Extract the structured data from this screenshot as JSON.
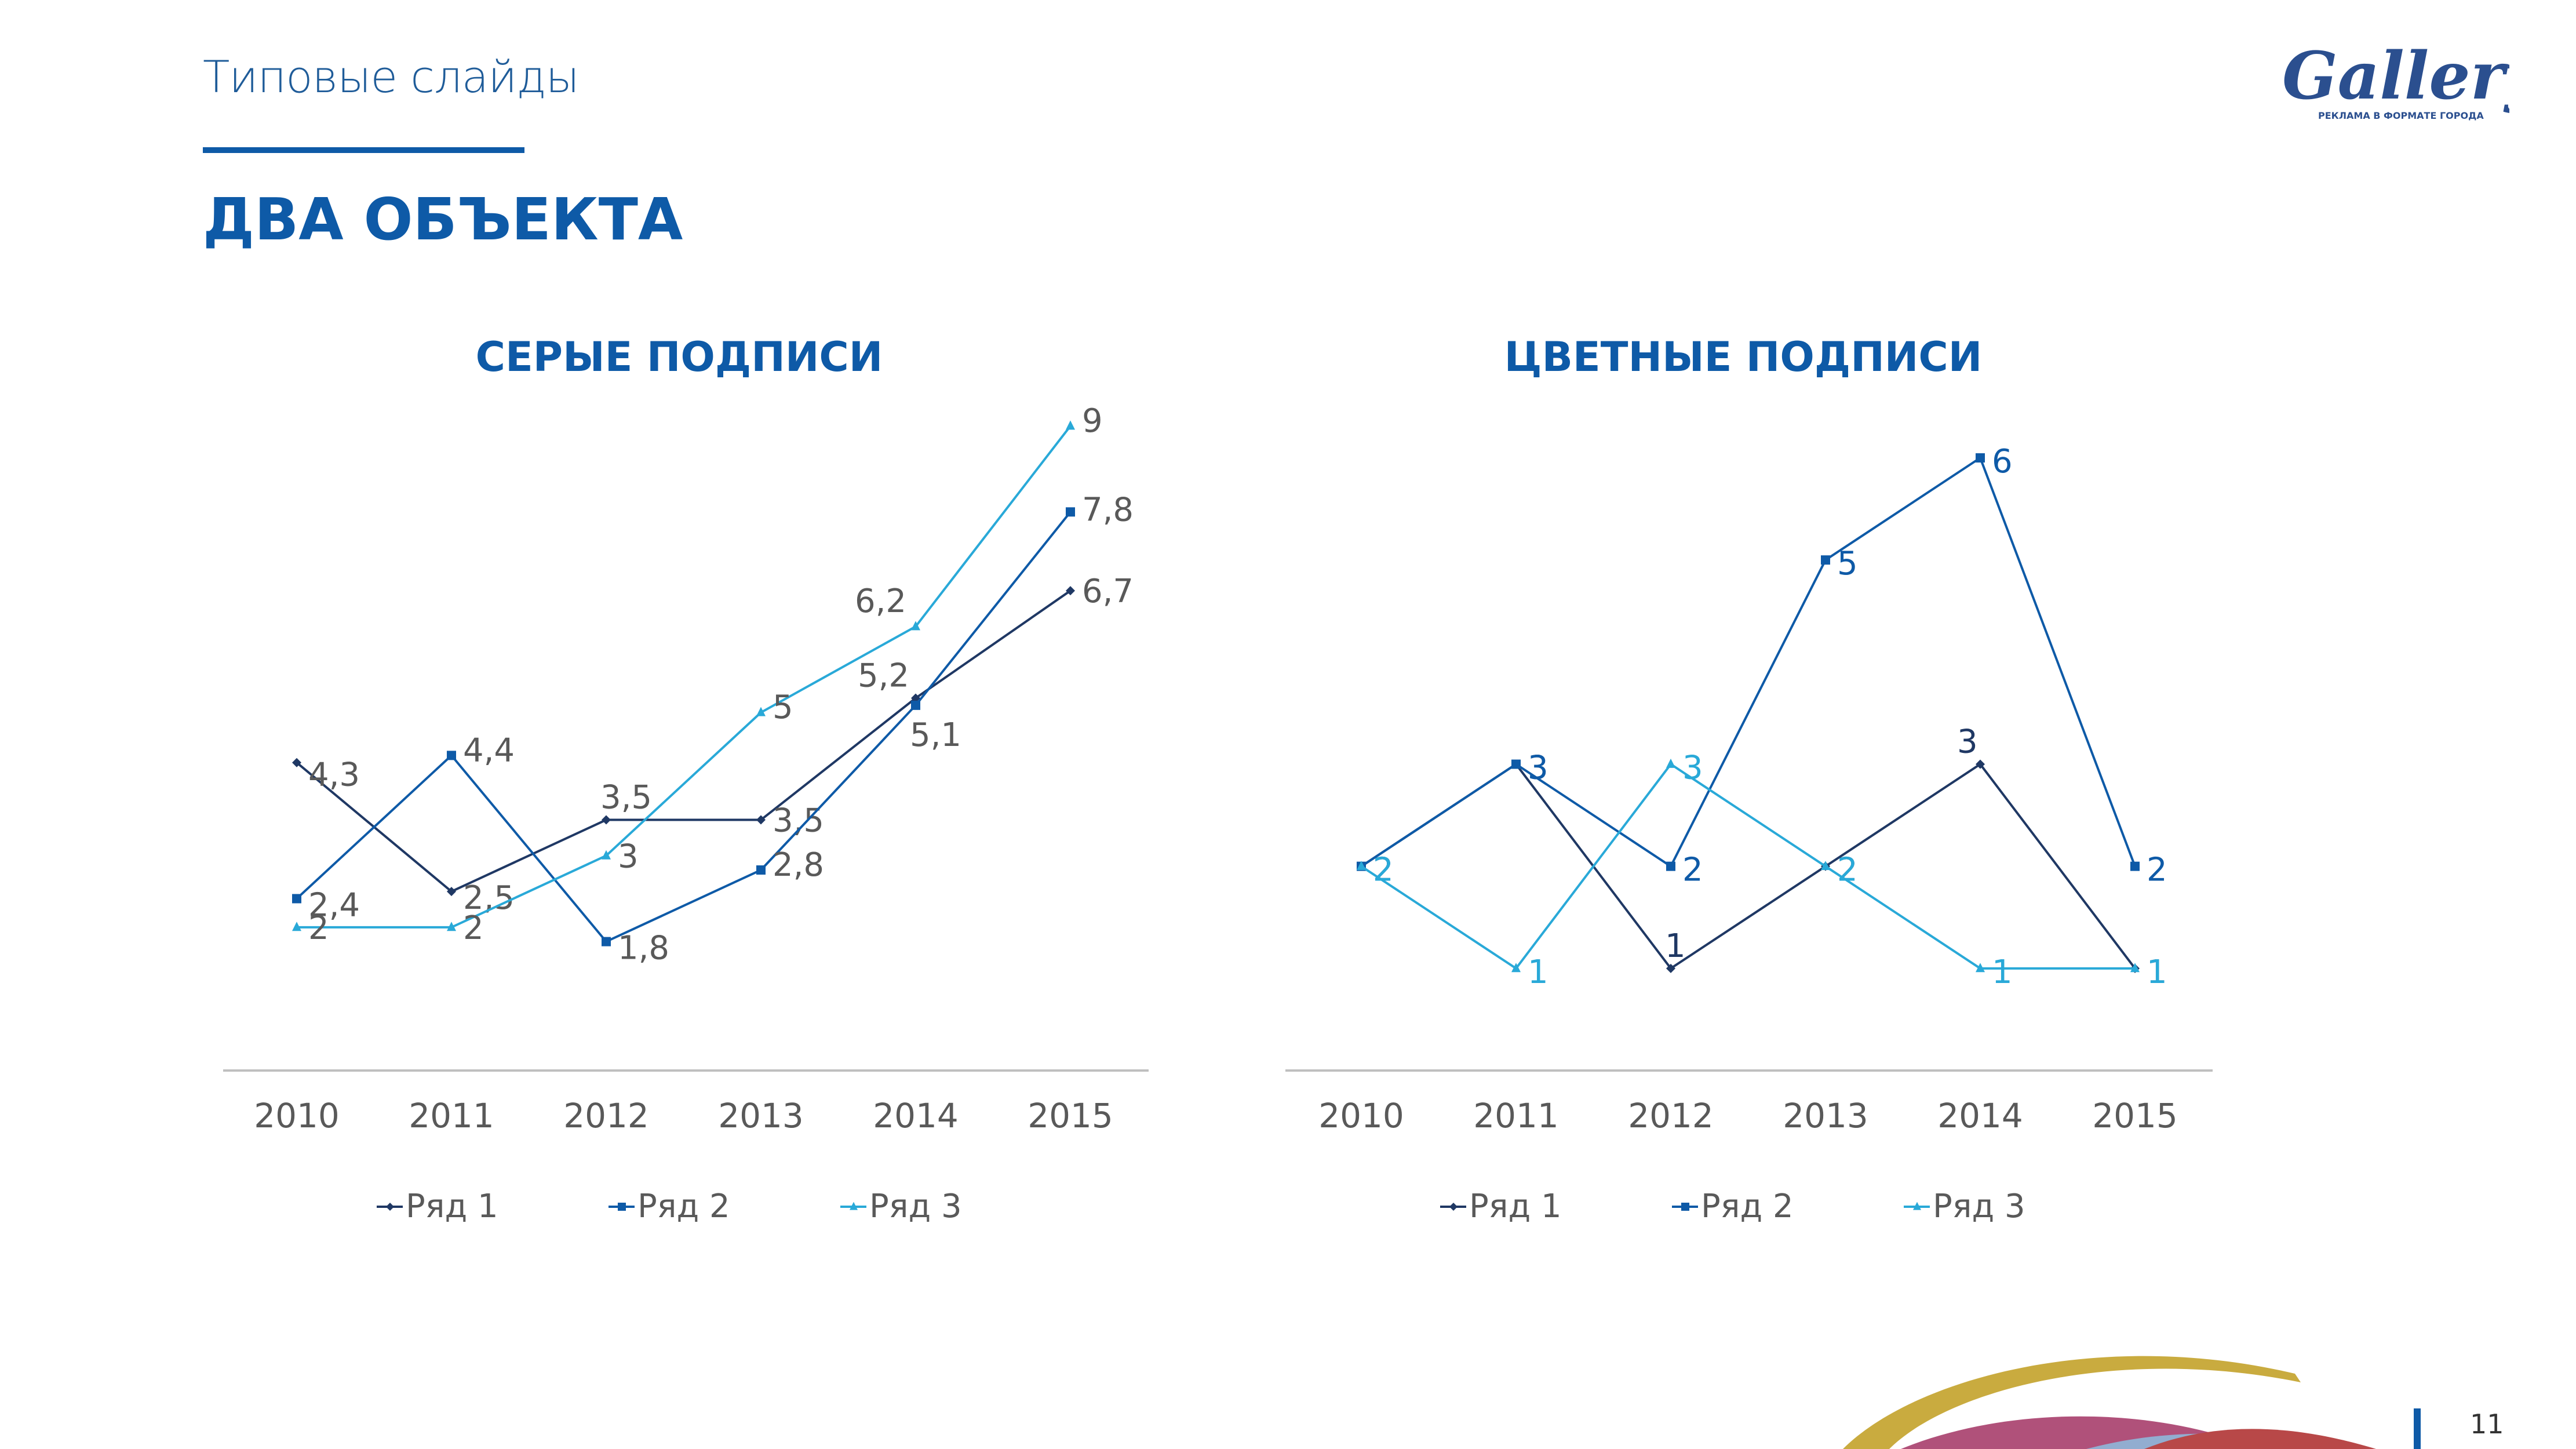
{
  "header": {
    "subtitle": "Типовые слайды",
    "title": "ДВА ОБЪЕКТА",
    "logo_text": "Gallery",
    "logo_tagline": "РЕКЛАМА В ФОРМАТЕ ГОРОДА"
  },
  "footer": {
    "page_number": "11"
  },
  "colors": {
    "brand": "#0e5aa7",
    "series1": "#1f3864",
    "series2": "#0e5aa7",
    "series3": "#29a9d8",
    "label_gray": "#595959",
    "axis": "#bfbfbf"
  },
  "chart_data": [
    {
      "type": "line",
      "title": "СЕРЫЕ ПОДПИСИ",
      "categories": [
        "2010",
        "2011",
        "2012",
        "2013",
        "2014",
        "2015"
      ],
      "series": [
        {
          "name": "Ряд 1",
          "values": [
            4.3,
            2.5,
            3.5,
            3.5,
            5.2,
            6.7
          ],
          "labels": [
            "4,3",
            "2,5",
            "3,5",
            "3,5",
            "5,2",
            "6,7"
          ],
          "marker": "diamond"
        },
        {
          "name": "Ряд 2",
          "values": [
            2.4,
            4.4,
            1.8,
            2.8,
            5.1,
            7.8
          ],
          "labels": [
            "2,4",
            "4,4",
            "1,8",
            "2,8",
            "5,1",
            "7,8"
          ],
          "marker": "square"
        },
        {
          "name": "Ряд 3",
          "values": [
            2,
            2,
            3,
            5,
            6.2,
            9
          ],
          "labels": [
            "2",
            "2",
            "3",
            "5",
            "6,2",
            "9"
          ],
          "marker": "triangle"
        }
      ],
      "label_style": "gray",
      "ylim": [
        0,
        10
      ],
      "legend": "bottom",
      "grid": false
    },
    {
      "type": "line",
      "title": "ЦВЕТНЫЕ ПОДПИСИ",
      "categories": [
        "2010",
        "2011",
        "2012",
        "2013",
        "2014",
        "2015"
      ],
      "series": [
        {
          "name": "Ряд 1",
          "values": [
            2,
            3,
            1,
            2,
            3,
            1
          ],
          "labels": [
            "2",
            "3",
            "1",
            "2",
            "3",
            "1"
          ],
          "marker": "diamond"
        },
        {
          "name": "Ряд 2",
          "values": [
            2,
            3,
            2,
            5,
            6,
            2
          ],
          "labels": [
            "2",
            "3",
            "2",
            "5",
            "6",
            "2"
          ],
          "marker": "square"
        },
        {
          "name": "Ряд 3",
          "values": [
            2,
            1,
            3,
            2,
            1,
            1
          ],
          "labels": [
            "2",
            "1",
            "3",
            "2",
            "1",
            "1"
          ],
          "marker": "triangle"
        }
      ],
      "label_style": "colored",
      "ylim": [
        0,
        7
      ],
      "legend": "bottom",
      "grid": false
    }
  ]
}
